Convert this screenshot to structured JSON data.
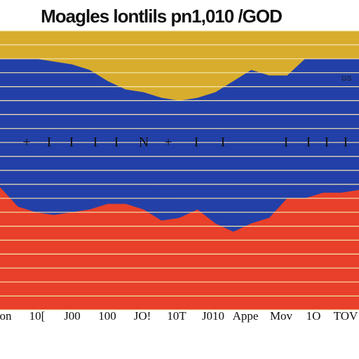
{
  "chart_data": {
    "type": "area",
    "title": "Moagles lontlils pn1,010 /GOD",
    "corner_label": "GS",
    "xlabel": "",
    "ylabel": "",
    "x": [
      0,
      1,
      2,
      3,
      4,
      5,
      6,
      7,
      8,
      9,
      10,
      11,
      12,
      13,
      14,
      15,
      16,
      17,
      18,
      19,
      20
    ],
    "ylim": [
      0,
      100
    ],
    "grid": true,
    "legend": "none",
    "xtick_labels": [
      "on",
      "10[",
      "J00",
      "100",
      "JO!",
      "10T",
      "J010",
      "Appe",
      "Mov",
      "1O",
      "TOV"
    ],
    "mid_band_glyphs": [
      "+",
      "I",
      "I",
      "I",
      "I",
      "N",
      "+",
      "I",
      "I",
      "I",
      "I",
      "I",
      "I"
    ],
    "series": [
      {
        "color": "#2340a8",
        "values": [
          90,
          90,
          90,
          89,
          88,
          86,
          82,
          79,
          78,
          76,
          75,
          76,
          78,
          82,
          86,
          84,
          84,
          90,
          90,
          90,
          90
        ]
      },
      {
        "color": "#2340a8",
        "values": [
          55,
          56,
          57,
          58,
          57,
          55,
          53,
          50,
          46,
          42,
          38,
          36,
          35,
          34,
          36,
          38,
          43,
          48,
          52,
          54,
          55
        ]
      },
      {
        "color": "#e8402a",
        "values": [
          44,
          37,
          35,
          34,
          35,
          36,
          38,
          38,
          36,
          32,
          33,
          36,
          31,
          28,
          31,
          33,
          40,
          40,
          42,
          42,
          43
        ]
      }
    ],
    "colors": {
      "background": "#d8ad2e",
      "grid": "#f4e6b0",
      "blue": "#2340a8",
      "red": "#e8402a"
    }
  }
}
